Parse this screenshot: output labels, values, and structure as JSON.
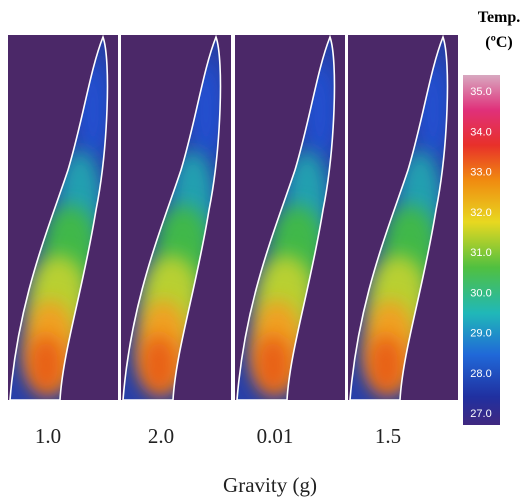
{
  "colorbar": {
    "title": "Temp.",
    "unit": "(ºC)",
    "ticks": [
      "35.0",
      "34.0",
      "33.0",
      "32.0",
      "31.0",
      "30.0",
      "29.0",
      "28.0",
      "27.0"
    ]
  },
  "panels": [
    {
      "label": "1.0"
    },
    {
      "label": "2.0"
    },
    {
      "label": "0.01"
    },
    {
      "label": "1.5"
    }
  ],
  "x_axis": {
    "title": "Gravity (g)"
  }
}
